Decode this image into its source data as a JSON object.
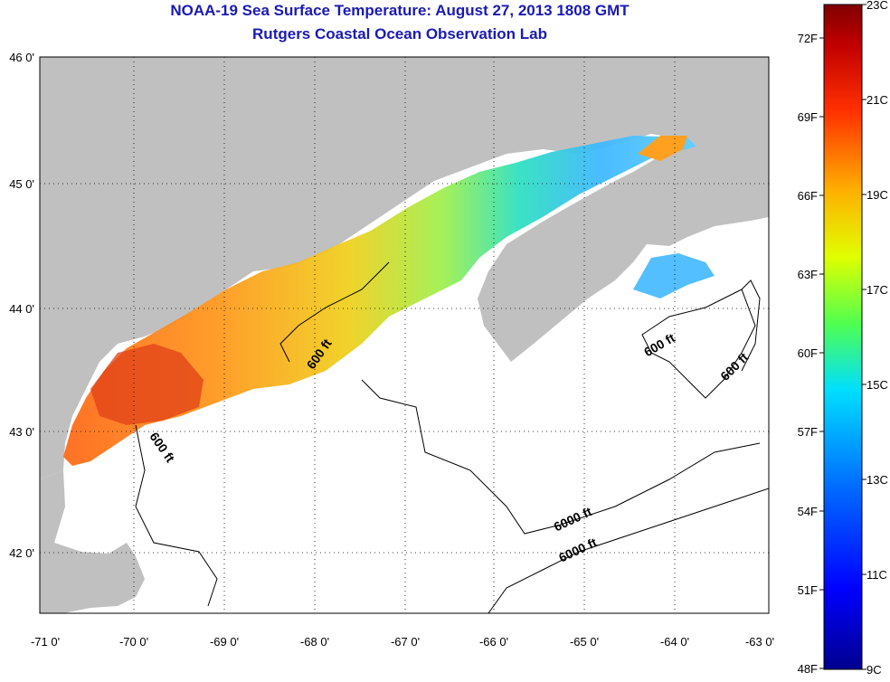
{
  "title": {
    "line1": "NOAA-19 Sea Surface Temperature:  August 27, 2013 1808 GMT",
    "line2": "Rutgers Coastal Ocean Observation Lab"
  },
  "map": {
    "lon_range": [
      -71,
      -63
    ],
    "lat_range": [
      41.5,
      46
    ],
    "lon_ticks": [
      "-71 0'",
      "-70 0'",
      "-69 0'",
      "-68 0'",
      "-67 0'",
      "-66 0'",
      "-65 0'",
      "-64 0'",
      "-63 0'"
    ],
    "lat_ticks": [
      "46 0'",
      "45 0'",
      "44 0'",
      "43 0'",
      "42 0'"
    ],
    "contour_labels": [
      "600 ft",
      "600 ft",
      "600 ft",
      "600 ft",
      "6000 ft"
    ],
    "land_color": "#c0c0c0",
    "cloud_color": "#ffffff"
  },
  "colorbar": {
    "celsius_labels": [
      "23C",
      "21C",
      "19C",
      "17C",
      "15C",
      "13C",
      "11C",
      "9C"
    ],
    "fahrenheit_labels": [
      "72F",
      "69F",
      "66F",
      "63F",
      "60F",
      "57F",
      "54F",
      "51F",
      "48F"
    ],
    "colors": [
      "#00008f",
      "#0000ff",
      "#0070ff",
      "#00dfff",
      "#50ff50",
      "#e0ff00",
      "#ffb000",
      "#ff3000",
      "#c00000",
      "#800000"
    ]
  }
}
